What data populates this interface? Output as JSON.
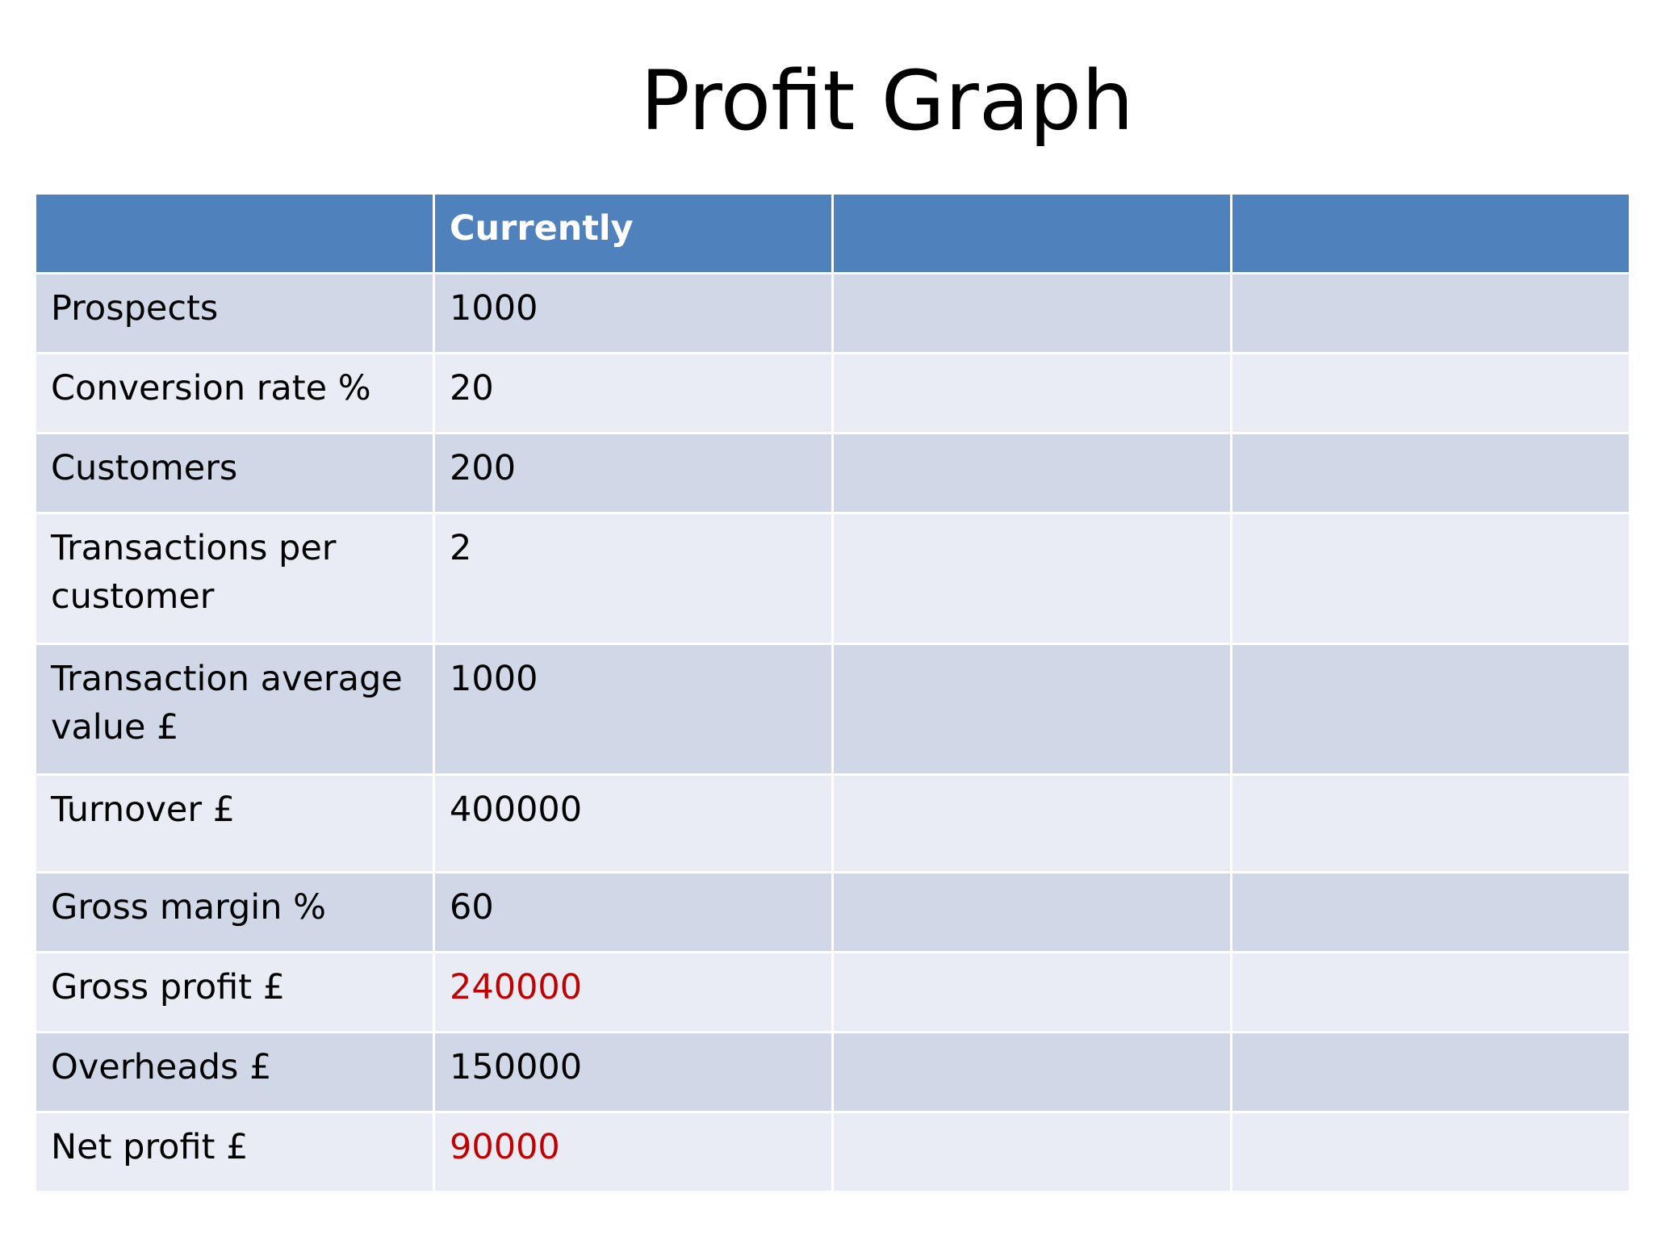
{
  "title": "Profit Graph",
  "table": {
    "headers": [
      "",
      "Currently",
      "",
      ""
    ],
    "rows": [
      {
        "label": "Prospects",
        "current": "1000",
        "highlight": false
      },
      {
        "label": "Conversion rate %",
        "current": "20",
        "highlight": false
      },
      {
        "label": "Customers",
        "current": "200",
        "highlight": false
      },
      {
        "label": "Transactions per customer",
        "current": "2",
        "highlight": false
      },
      {
        "label": "Transaction average value £",
        "current": "1000",
        "highlight": false
      },
      {
        "label": "Turnover £",
        "current": "400000",
        "highlight": false
      },
      {
        "label": "Gross margin %",
        "current": "60",
        "highlight": false
      },
      {
        "label": "Gross profit £",
        "current": "240000",
        "highlight": true
      },
      {
        "label": "Overheads £",
        "current": "150000",
        "highlight": false
      },
      {
        "label": "Net profit £",
        "current": "90000",
        "highlight": true
      }
    ]
  },
  "colors": {
    "header_bg": "#4f81bd",
    "row_odd_bg": "#d0d8e8",
    "row_even_bg": "#e9ecf4",
    "highlight_text": "#c00000"
  }
}
